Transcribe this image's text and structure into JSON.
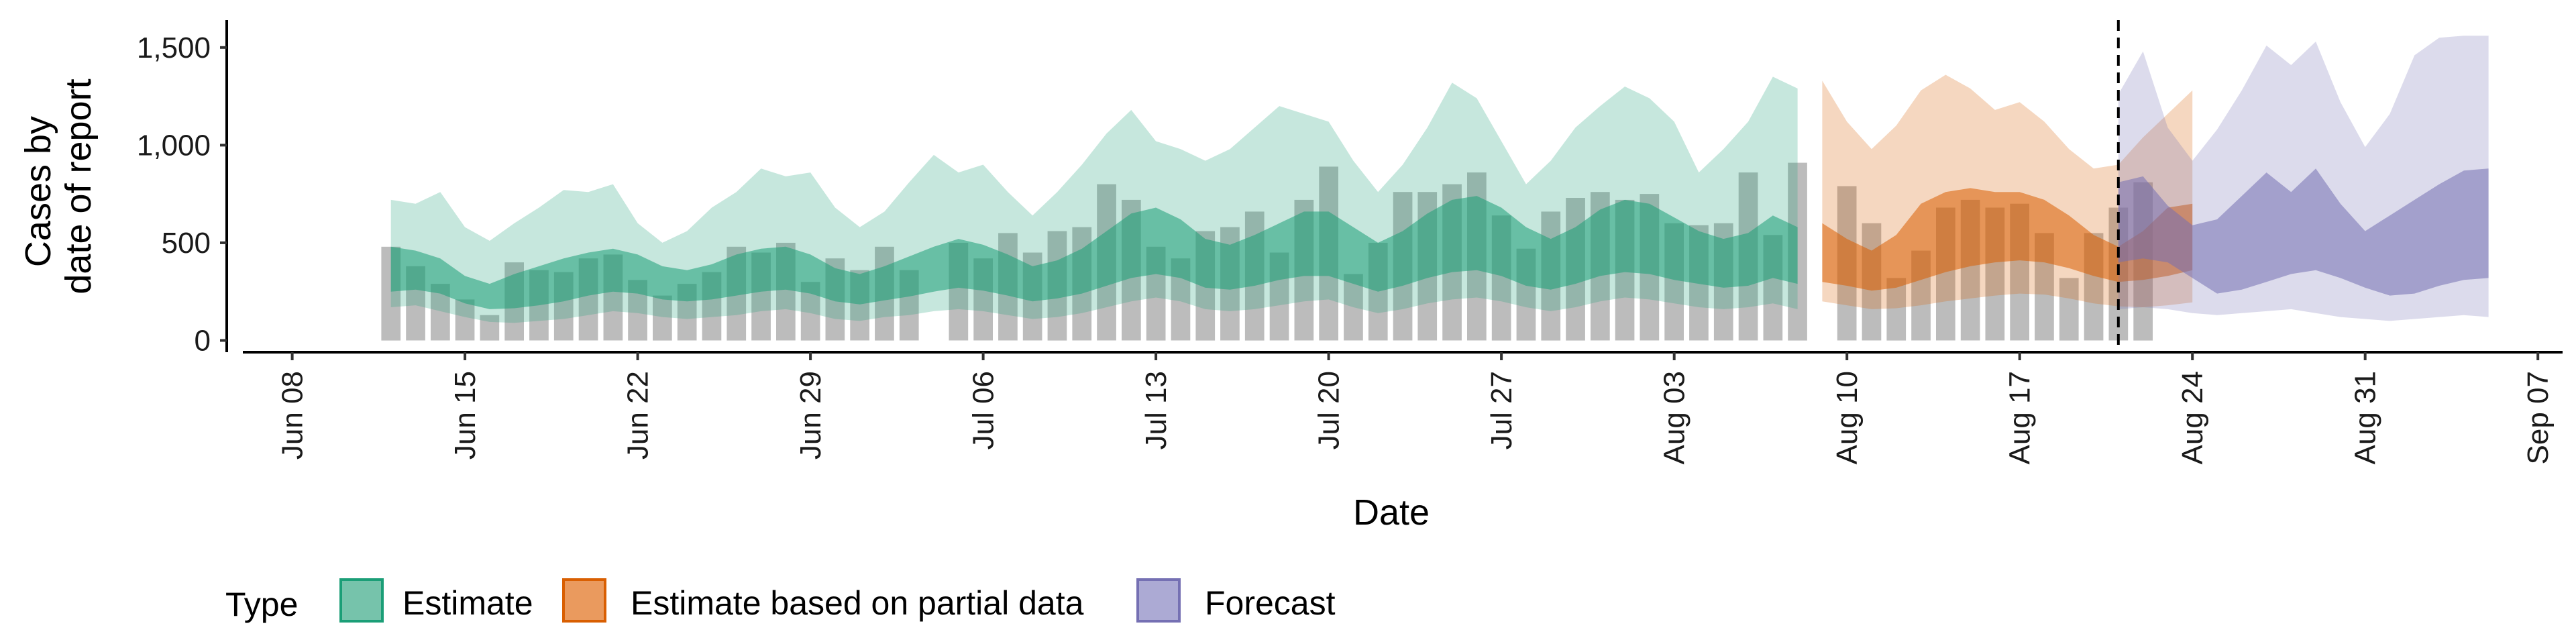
{
  "chart_data": {
    "type": "area",
    "title": "",
    "xlabel": "Date",
    "ylabel_lines": [
      "Cases by",
      "date of report"
    ],
    "x_ticks": [
      "Jun 08",
      "Jun 15",
      "Jun 22",
      "Jun 29",
      "Jul 06",
      "Jul 13",
      "Jul 20",
      "Jul 27",
      "Aug 03",
      "Aug 10",
      "Aug 17",
      "Aug 24",
      "Aug 31",
      "Sep 07"
    ],
    "xlim": [
      "2020-06-06",
      "2020-09-08"
    ],
    "y_ticks": [
      "0",
      "500",
      "1,000",
      "1,500"
    ],
    "y_tick_values": [
      0,
      500,
      1000,
      1500
    ],
    "ylim": [
      -60,
      1640
    ],
    "grid": false,
    "legend_position": "bottom",
    "legend_title": "Type",
    "forecast_cutoff": "2020-08-21",
    "colors": {
      "bars": "#a6a6a6",
      "Estimate": "#1b9e77",
      "Estimate based on partial data": "#d95f02",
      "Forecast": "#7570b3",
      "outer_band_opacity": 0.25,
      "inner_band_opacity": 0.55
    },
    "reported_cases": {
      "start": "2020-06-12",
      "values": [
        480,
        380,
        290,
        210,
        130,
        400,
        360,
        350,
        420,
        440,
        310,
        230,
        290,
        350,
        480,
        450,
        500,
        300,
        420,
        360,
        480,
        360,
        0,
        500,
        420,
        550,
        450,
        560,
        580,
        800,
        720,
        480,
        420,
        560,
        580,
        660,
        450,
        720,
        890,
        340,
        500,
        760,
        760,
        800,
        860,
        640,
        470,
        660,
        730,
        760,
        720,
        750,
        600,
        590,
        600,
        860,
        540,
        910,
        0,
        790,
        600,
        320,
        460,
        680,
        720,
        680,
        700,
        550,
        320,
        550,
        680,
        810
      ]
    },
    "bands": [
      {
        "name": "Estimate",
        "start": "2020-06-12",
        "lower90": [
          170,
          180,
          150,
          120,
          95,
          90,
          100,
          110,
          130,
          150,
          140,
          120,
          110,
          120,
          130,
          150,
          160,
          140,
          110,
          100,
          120,
          130,
          150,
          160,
          150,
          130,
          110,
          120,
          140,
          170,
          200,
          220,
          200,
          160,
          150,
          160,
          180,
          200,
          210,
          170,
          140,
          160,
          190,
          210,
          220,
          200,
          170,
          150,
          170,
          200,
          220,
          210,
          190,
          170,
          160,
          170,
          190,
          160
        ],
        "lower50": [
          250,
          260,
          240,
          190,
          160,
          165,
          180,
          200,
          230,
          250,
          240,
          210,
          200,
          210,
          230,
          250,
          260,
          240,
          200,
          185,
          205,
          225,
          250,
          270,
          255,
          230,
          200,
          215,
          240,
          280,
          320,
          340,
          320,
          270,
          260,
          280,
          310,
          330,
          330,
          290,
          250,
          280,
          320,
          350,
          360,
          330,
          280,
          260,
          290,
          330,
          350,
          340,
          310,
          290,
          270,
          280,
          320,
          290
        ],
        "upper50": [
          480,
          460,
          420,
          330,
          290,
          340,
          380,
          420,
          450,
          470,
          440,
          380,
          360,
          390,
          440,
          470,
          480,
          440,
          370,
          340,
          380,
          430,
          480,
          520,
          490,
          440,
          380,
          410,
          470,
          560,
          650,
          680,
          620,
          520,
          490,
          540,
          600,
          660,
          660,
          580,
          500,
          560,
          650,
          720,
          740,
          680,
          580,
          520,
          580,
          670,
          720,
          700,
          630,
          560,
          520,
          550,
          640,
          580
        ],
        "upper90": [
          720,
          700,
          760,
          580,
          510,
          600,
          680,
          770,
          760,
          800,
          600,
          500,
          560,
          680,
          760,
          880,
          840,
          860,
          680,
          580,
          660,
          810,
          950,
          860,
          900,
          760,
          640,
          760,
          900,
          1060,
          1180,
          1020,
          980,
          920,
          980,
          1090,
          1200,
          1160,
          1120,
          920,
          760,
          900,
          1090,
          1320,
          1240,
          1020,
          800,
          920,
          1090,
          1200,
          1300,
          1240,
          1120,
          860,
          980,
          1120,
          1350,
          1290
        ]
      },
      {
        "name": "Estimate based on partial data",
        "start": "2020-08-09",
        "lower90": [
          200,
          180,
          160,
          165,
          180,
          200,
          215,
          230,
          240,
          235,
          215,
          190,
          175,
          170,
          180,
          195
        ],
        "lower50": [
          300,
          280,
          255,
          270,
          310,
          350,
          380,
          400,
          410,
          400,
          370,
          330,
          300,
          310,
          330,
          360
        ],
        "upper50": [
          600,
          520,
          460,
          540,
          700,
          760,
          780,
          760,
          760,
          720,
          640,
          540,
          480,
          560,
          680,
          700
        ],
        "upper90": [
          1330,
          1120,
          980,
          1100,
          1280,
          1360,
          1290,
          1180,
          1220,
          1120,
          980,
          880,
          900,
          1040,
          1160,
          1280
        ]
      },
      {
        "name": "Forecast",
        "start": "2020-08-21",
        "lower90": [
          160,
          170,
          160,
          140,
          130,
          140,
          150,
          160,
          140,
          120,
          110,
          100,
          110,
          120,
          130,
          120
        ],
        "lower50": [
          400,
          420,
          400,
          320,
          240,
          260,
          300,
          340,
          360,
          320,
          270,
          230,
          240,
          280,
          310,
          320
        ],
        "upper50": [
          810,
          840,
          690,
          590,
          620,
          740,
          860,
          760,
          880,
          700,
          560,
          640,
          720,
          800,
          870,
          880
        ],
        "upper90": [
          1260,
          1480,
          1090,
          920,
          1080,
          1280,
          1510,
          1410,
          1530,
          1220,
          990,
          1160,
          1460,
          1550,
          1560,
          1560
        ]
      }
    ]
  }
}
